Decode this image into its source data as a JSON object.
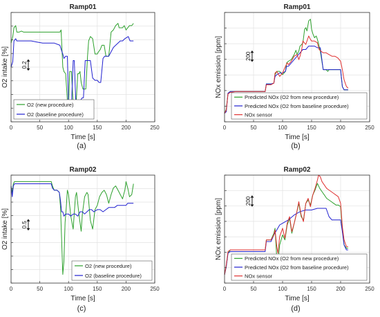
{
  "figure_labels": [
    "(a)",
    "(b)",
    "(c)",
    "(d)"
  ],
  "chart_data": [
    {
      "type": "line",
      "title": "Ramp01",
      "xlabel": "Time [s]",
      "ylabel": "O2 intake [%]",
      "xlim": [
        0,
        250
      ],
      "xticks": [
        0,
        50,
        100,
        150,
        200,
        250
      ],
      "scale_bar": {
        "label": "0.2",
        "value": 0.2
      },
      "yticks_count": 8,
      "grid": true,
      "legend_position": "bottom-left",
      "series": [
        {
          "name": "O2 (new procedure)",
          "color": "#2ca02c",
          "x": [
            0,
            3,
            5,
            8,
            10,
            14,
            18,
            22,
            40,
            60,
            85,
            87,
            90,
            92,
            95,
            98,
            100,
            102,
            105,
            108,
            111,
            113,
            116,
            118,
            120,
            122,
            125,
            127,
            130,
            133,
            135,
            138,
            142,
            146,
            150,
            152,
            155,
            158,
            162,
            165,
            170,
            174,
            178,
            182,
            186,
            188,
            191,
            194,
            197,
            200,
            203,
            206,
            210,
            213
          ],
          "y": [
            0.72,
            0.78,
            0.86,
            0.88,
            0.82,
            0.82,
            0.83,
            0.82,
            0.82,
            0.82,
            0.82,
            0.84,
            0.5,
            0.46,
            0.44,
            0.2,
            0.14,
            0.46,
            0.46,
            0.16,
            0.12,
            0.14,
            0.44,
            0.44,
            0.46,
            0.36,
            0.3,
            0.3,
            0.3,
            0.6,
            0.74,
            0.78,
            0.76,
            0.62,
            0.62,
            0.64,
            0.66,
            0.7,
            0.7,
            0.6,
            0.6,
            0.82,
            0.84,
            0.88,
            0.9,
            0.86,
            0.86,
            0.86,
            0.88,
            0.84,
            0.86,
            0.88,
            0.88,
            0.9
          ]
        },
        {
          "name": "O2 (baseline procedure)",
          "color": "#2020d0",
          "x": [
            0,
            3,
            5,
            8,
            10,
            18,
            25,
            35,
            45,
            55,
            60,
            65,
            75,
            85,
            88,
            90,
            92,
            95,
            98,
            100,
            102,
            105,
            108,
            110,
            113,
            116,
            118,
            121,
            124,
            126,
            129,
            132,
            135,
            138,
            142,
            146,
            150,
            153,
            156,
            160,
            163,
            166,
            170,
            174,
            178,
            182,
            186,
            190,
            194,
            198,
            201,
            204,
            207,
            210,
            213
          ],
          "y": [
            0.5,
            0.55,
            0.74,
            0.76,
            0.74,
            0.74,
            0.74,
            0.74,
            0.73,
            0.72,
            0.72,
            0.72,
            0.72,
            0.7,
            0.65,
            0.62,
            0.58,
            0.6,
            0.6,
            0.14,
            0.12,
            0.14,
            0.56,
            0.56,
            0.14,
            0.16,
            0.18,
            0.2,
            0.22,
            0.22,
            0.56,
            0.56,
            0.56,
            0.56,
            0.4,
            0.38,
            0.38,
            0.36,
            0.36,
            0.58,
            0.6,
            0.6,
            0.6,
            0.64,
            0.68,
            0.7,
            0.72,
            0.74,
            0.74,
            0.76,
            0.77,
            0.78,
            0.74,
            0.74,
            0.74
          ]
        }
      ]
    },
    {
      "type": "line",
      "title": "Ramp01",
      "xlabel": "Time [s]",
      "ylabel": "NOx emission [ppm]",
      "xlim": [
        0,
        250
      ],
      "xticks": [
        0,
        50,
        100,
        150,
        200,
        250
      ],
      "scale_bar": {
        "label": "200",
        "value": 200
      },
      "yticks_count": 7,
      "grid": true,
      "legend_position": "bottom-right",
      "series": [
        {
          "name": "Predicted NOx (O2 from new procedure)",
          "color": "#2ca02c",
          "x": [
            0,
            3,
            6,
            10,
            20,
            40,
            60,
            70,
            72,
            80,
            85,
            87,
            90,
            95,
            100,
            105,
            107,
            110,
            115,
            120,
            123,
            125,
            128,
            130,
            133,
            135,
            138,
            140,
            142,
            145,
            148,
            150,
            152,
            155,
            158,
            160,
            163,
            165,
            170,
            175,
            178,
            180,
            185,
            190,
            195,
            200,
            203,
            206,
            210,
            213
          ],
          "y": [
            0.1,
            0.15,
            0.34,
            0.36,
            0.36,
            0.36,
            0.36,
            0.36,
            0.45,
            0.45,
            0.46,
            0.56,
            0.6,
            0.6,
            0.56,
            0.6,
            0.7,
            0.72,
            0.74,
            0.8,
            0.85,
            0.8,
            0.84,
            0.9,
            0.92,
            0.94,
            1.1,
            1.12,
            1.08,
            1.2,
            1.22,
            1.1,
            1.05,
            1.0,
            1.02,
            0.98,
            0.9,
            0.84,
            0.62,
            0.62,
            0.6,
            0.62,
            0.62,
            0.62,
            0.62,
            0.62,
            0.42,
            0.38,
            0.38,
            0.38
          ]
        },
        {
          "name": "Predicted NOx (O2 from baseline procedure)",
          "color": "#2020d0",
          "x": [
            0,
            3,
            6,
            10,
            20,
            40,
            60,
            70,
            72,
            80,
            85,
            87,
            90,
            95,
            100,
            105,
            107,
            110,
            115,
            120,
            125,
            130,
            135,
            140,
            145,
            150,
            155,
            160,
            165,
            170,
            175,
            180,
            185,
            190,
            195,
            200,
            203,
            206,
            210,
            213
          ],
          "y": [
            0.1,
            0.12,
            0.34,
            0.36,
            0.36,
            0.36,
            0.36,
            0.36,
            0.45,
            0.45,
            0.46,
            0.54,
            0.56,
            0.58,
            0.58,
            0.6,
            0.66,
            0.66,
            0.7,
            0.74,
            0.78,
            0.82,
            0.86,
            0.86,
            0.9,
            0.9,
            0.9,
            0.88,
            0.88,
            0.62,
            0.62,
            0.62,
            0.62,
            0.62,
            0.62,
            0.62,
            0.42,
            0.38,
            0.38,
            0.38
          ]
        },
        {
          "name": "NOx sensor",
          "color": "#e03030",
          "x": [
            0,
            3,
            6,
            10,
            20,
            40,
            60,
            70,
            72,
            80,
            85,
            87,
            90,
            95,
            100,
            105,
            108,
            110,
            115,
            120,
            125,
            128,
            130,
            133,
            135,
            140,
            145,
            148,
            150,
            155,
            160,
            163,
            166,
            170,
            175,
            180,
            185,
            190,
            195,
            200,
            203,
            206,
            210,
            213
          ],
          "y": [
            0.1,
            0.14,
            0.33,
            0.35,
            0.36,
            0.36,
            0.36,
            0.36,
            0.44,
            0.44,
            0.46,
            0.58,
            0.6,
            0.54,
            0.58,
            0.66,
            0.7,
            0.68,
            0.72,
            0.78,
            0.8,
            0.74,
            0.78,
            0.86,
            0.96,
            0.92,
            1.02,
            0.98,
            0.96,
            0.96,
            0.94,
            0.86,
            0.84,
            0.82,
            0.82,
            0.8,
            0.78,
            0.78,
            0.76,
            0.72,
            0.62,
            0.5,
            0.42,
            0.4
          ]
        }
      ]
    },
    {
      "type": "line",
      "title": "Ramp02",
      "xlabel": "Time [s]",
      "ylabel": "O2 intake [%]",
      "xlim": [
        0,
        250
      ],
      "xticks": [
        0,
        50,
        100,
        150,
        200,
        250
      ],
      "scale_bar": {
        "label": "0.5",
        "value": 0.5
      },
      "yticks_count": 8,
      "grid": true,
      "legend_position": "bottom-right",
      "series": [
        {
          "name": "O2 (new procedure)",
          "color": "#2ca02c",
          "x": [
            0,
            2,
            4,
            6,
            10,
            20,
            40,
            60,
            70,
            72,
            75,
            80,
            84,
            86,
            88,
            90,
            92,
            94,
            96,
            98,
            100,
            104,
            108,
            112,
            114,
            118,
            122,
            124,
            128,
            132,
            134,
            138,
            142,
            146,
            150,
            154,
            158,
            162,
            166,
            170,
            174,
            178,
            182,
            186,
            190,
            194,
            198,
            200,
            203,
            206,
            210,
            213
          ],
          "y": [
            0.9,
            0.84,
            0.92,
            0.94,
            0.94,
            0.94,
            0.94,
            0.94,
            0.94,
            0.9,
            0.86,
            0.86,
            0.84,
            0.7,
            0.4,
            0.08,
            0.2,
            0.56,
            0.7,
            0.86,
            0.82,
            0.62,
            0.5,
            0.8,
            0.84,
            0.64,
            0.48,
            0.64,
            0.8,
            0.84,
            0.82,
            0.58,
            0.5,
            0.68,
            0.72,
            0.8,
            0.84,
            0.86,
            0.82,
            0.74,
            0.82,
            0.88,
            0.9,
            0.86,
            0.82,
            0.78,
            0.86,
            0.94,
            0.88,
            0.8,
            0.82,
            0.92
          ]
        },
        {
          "name": "O2 (baseline procedure)",
          "color": "#2020d0",
          "x": [
            0,
            2,
            4,
            6,
            10,
            20,
            40,
            60,
            70,
            72,
            75,
            80,
            84,
            86,
            88,
            90,
            92,
            95,
            100,
            104,
            108,
            112,
            116,
            120,
            124,
            128,
            132,
            136,
            140,
            144,
            150,
            155,
            160,
            165,
            170,
            175,
            180,
            185,
            190,
            195,
            200,
            203,
            206,
            210,
            213
          ],
          "y": [
            0.9,
            0.8,
            0.9,
            0.92,
            0.92,
            0.92,
            0.92,
            0.92,
            0.92,
            0.88,
            0.86,
            0.86,
            0.84,
            0.76,
            0.66,
            0.66,
            0.62,
            0.64,
            0.64,
            0.62,
            0.64,
            0.64,
            0.62,
            0.66,
            0.66,
            0.64,
            0.66,
            0.68,
            0.68,
            0.66,
            0.68,
            0.68,
            0.66,
            0.68,
            0.7,
            0.7,
            0.7,
            0.72,
            0.72,
            0.72,
            0.72,
            0.74,
            0.74,
            0.74,
            0.74
          ]
        }
      ]
    },
    {
      "type": "line",
      "title": "Ramp02",
      "xlabel": "Time [s]",
      "ylabel": "NOx emission [ppm]",
      "xlim": [
        0,
        250
      ],
      "xticks": [
        0,
        50,
        100,
        150,
        200,
        250
      ],
      "scale_bar": {
        "label": "200",
        "value": 200
      },
      "yticks_count": 7,
      "grid": true,
      "legend_position": "bottom-right",
      "series": [
        {
          "name": "Predicted NOx (O2 from new procedure)",
          "color": "#2ca02c",
          "x": [
            0,
            3,
            6,
            10,
            20,
            40,
            60,
            70,
            72,
            80,
            85,
            87,
            90,
            92,
            95,
            100,
            104,
            108,
            112,
            116,
            120,
            124,
            128,
            132,
            136,
            140,
            144,
            148,
            152,
            156,
            160,
            164,
            168,
            172,
            176,
            180,
            184,
            188,
            192,
            196,
            200,
            203,
            206,
            210,
            213
          ],
          "y": [
            0.1,
            0.2,
            0.36,
            0.4,
            0.4,
            0.4,
            0.4,
            0.4,
            0.52,
            0.52,
            0.6,
            0.66,
            0.3,
            0.24,
            0.46,
            0.58,
            0.52,
            0.7,
            0.78,
            0.6,
            0.72,
            0.84,
            0.96,
            0.8,
            0.76,
            0.96,
            1.0,
            0.94,
            1.06,
            1.12,
            1.2,
            1.14,
            1.1,
            1.06,
            1.02,
            1.0,
            0.98,
            0.96,
            0.94,
            0.94,
            0.92,
            0.64,
            0.46,
            0.42,
            0.42
          ]
        },
        {
          "name": "Predicted NOx (O2 from baseline procedure)",
          "color": "#2020d0",
          "x": [
            0,
            3,
            6,
            10,
            20,
            40,
            60,
            70,
            72,
            80,
            85,
            90,
            95,
            100,
            110,
            120,
            130,
            140,
            150,
            160,
            170,
            175,
            180,
            185,
            190,
            195,
            200,
            203,
            206,
            210,
            213
          ],
          "y": [
            0.1,
            0.2,
            0.36,
            0.38,
            0.38,
            0.38,
            0.38,
            0.38,
            0.5,
            0.5,
            0.58,
            0.64,
            0.7,
            0.72,
            0.76,
            0.82,
            0.86,
            0.88,
            0.88,
            0.9,
            0.9,
            0.9,
            0.8,
            0.76,
            0.76,
            0.76,
            0.76,
            0.62,
            0.46,
            0.4,
            0.4
          ]
        },
        {
          "name": "NOx sensor",
          "color": "#e03030",
          "x": [
            0,
            3,
            6,
            10,
            20,
            40,
            60,
            70,
            72,
            80,
            85,
            87,
            90,
            92,
            95,
            100,
            104,
            108,
            112,
            116,
            120,
            124,
            128,
            132,
            136,
            140,
            144,
            148,
            152,
            156,
            160,
            162,
            165,
            168,
            172,
            176,
            180,
            184,
            188,
            192,
            196,
            200,
            203,
            206,
            210,
            213
          ],
          "y": [
            0.1,
            0.22,
            0.38,
            0.4,
            0.4,
            0.4,
            0.4,
            0.4,
            0.52,
            0.52,
            0.58,
            0.64,
            0.44,
            0.36,
            0.56,
            0.66,
            0.54,
            0.72,
            0.8,
            0.62,
            0.72,
            0.84,
            0.98,
            0.82,
            0.74,
            0.96,
            1.02,
            0.92,
            1.06,
            1.14,
            1.24,
            1.3,
            1.28,
            1.22,
            1.18,
            1.14,
            1.12,
            1.1,
            1.08,
            1.06,
            1.04,
            0.96,
            0.68,
            0.52,
            0.44,
            0.44
          ]
        }
      ]
    }
  ]
}
